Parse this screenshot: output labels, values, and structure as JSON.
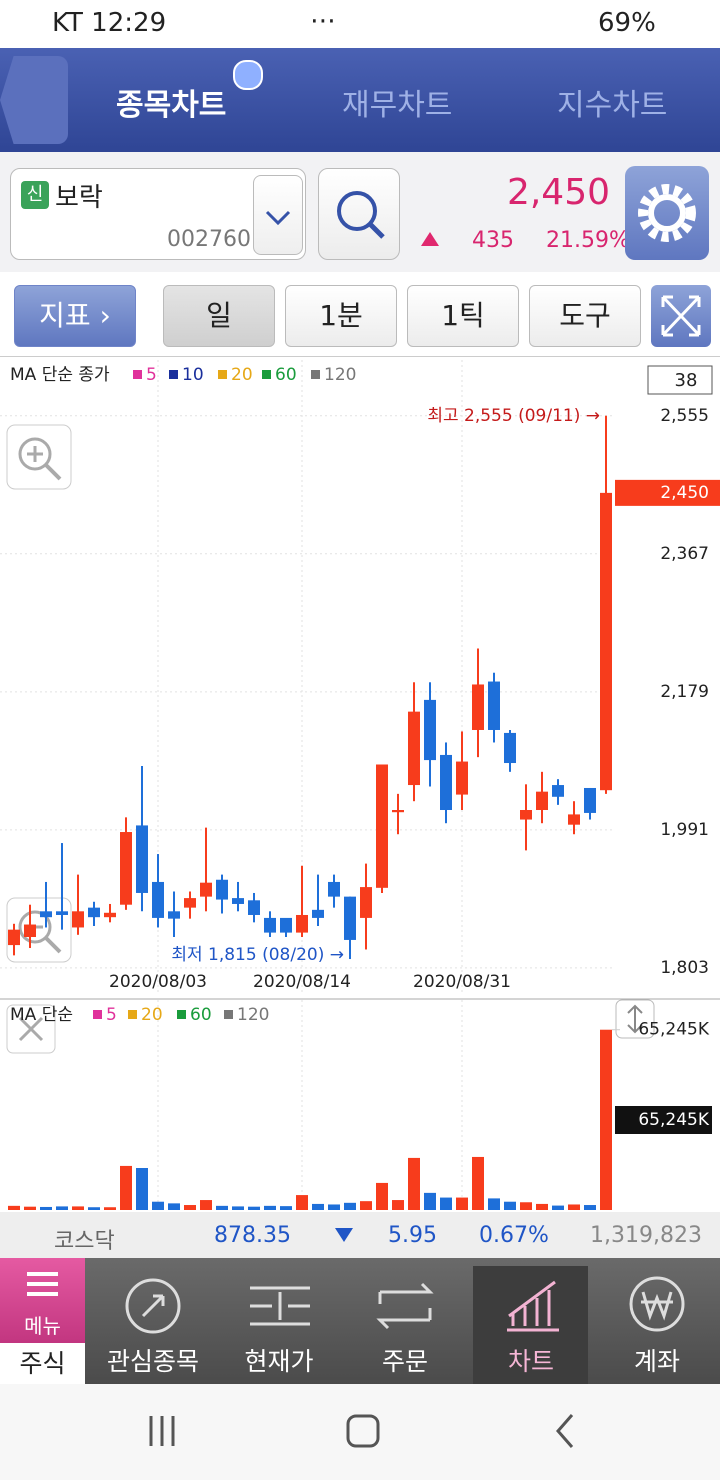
{
  "status_bar": {
    "carrier_time": "KT 12:29",
    "battery": "69%"
  },
  "tabs": [
    "종목차트",
    "재무차트",
    "지수차트"
  ],
  "stock": {
    "badge": "신",
    "name": "보락",
    "code": "002760",
    "price": "2,450",
    "change": "435",
    "change_rate": "21.59%"
  },
  "toolbar": [
    "지표",
    "일",
    "1분",
    "1틱",
    "도구"
  ],
  "chart_data": [
    {
      "type": "candlestick",
      "legend_title": "MA 단순 종가",
      "moving_averages": [
        {
          "period": 5,
          "color": "#e0319b"
        },
        {
          "period": 10,
          "color": "#1a2f9c"
        },
        {
          "period": 20,
          "color": "#e6a817"
        },
        {
          "period": 60,
          "color": "#1a9c3c"
        },
        {
          "period": 120,
          "color": "#777777"
        }
      ],
      "visible_count": 38,
      "categories": [
        null,
        null,
        null,
        null,
        null,
        null,
        null,
        null,
        null,
        "2020/08/03",
        null,
        null,
        null,
        null,
        null,
        null,
        null,
        null,
        "2020/08/14",
        null,
        null,
        null,
        null,
        null,
        null,
        null,
        null,
        null,
        "2020/08/31",
        null,
        null,
        null,
        null,
        null,
        null,
        null,
        null,
        null
      ],
      "open": [
        1834,
        1845,
        1880,
        1880,
        1858,
        1885,
        1872,
        1889,
        1997,
        1920,
        1880,
        1885,
        1900,
        1923,
        1898,
        1895,
        1871,
        1871,
        1851,
        1882,
        1920,
        1900,
        1871,
        1912,
        2015,
        2052,
        2168,
        2093,
        2039,
        2127,
        2193,
        2123,
        2005,
        2018,
        2052,
        1998,
        2048,
        2045
      ],
      "high": [
        1863,
        1889,
        1920,
        1973,
        1930,
        1893,
        1890,
        2008,
        2078,
        1958,
        1907,
        1907,
        1994,
        1930,
        1920,
        1905,
        1880,
        1870,
        1942,
        1930,
        1930,
        1900,
        1945,
        2080,
        2040,
        2192,
        2192,
        2110,
        2125,
        2238,
        2205,
        2127,
        2053,
        2070,
        2060,
        2030,
        2048,
        2555
      ],
      "low": [
        1820,
        1830,
        1858,
        1855,
        1848,
        1860,
        1865,
        1882,
        1880,
        1858,
        1845,
        1870,
        1880,
        1877,
        1880,
        1865,
        1845,
        1845,
        1845,
        1860,
        1885,
        1815,
        1828,
        1905,
        1985,
        2030,
        2050,
        2000,
        2018,
        2090,
        2110,
        2070,
        1963,
        2000,
        2025,
        1985,
        2005,
        2040
      ],
      "close": [
        1855,
        1862,
        1872,
        1875,
        1880,
        1872,
        1878,
        1988,
        1905,
        1871,
        1870,
        1898,
        1919,
        1896,
        1890,
        1875,
        1851,
        1851,
        1875,
        1871,
        1900,
        1841,
        1913,
        2080,
        2018,
        2152,
        2086,
        2018,
        2084,
        2189,
        2127,
        2082,
        2018,
        2043,
        2036,
        2012,
        2014,
        2450
      ],
      "up_color": "#f73c1c",
      "down_color": "#1e6fd9",
      "ylim": [
        1766,
        2631
      ],
      "yticks": [
        {
          "value": 2555,
          "label": "2,555"
        },
        {
          "value": 2367,
          "label": "2,367"
        },
        {
          "value": 2179,
          "label": "2,179"
        },
        {
          "value": 1991,
          "label": "1,991"
        },
        {
          "value": 1803,
          "label": "1,803"
        }
      ],
      "current_value": {
        "value": 2450,
        "label": "2,450"
      },
      "high_annotation": "최고 2,555 (09/11) →",
      "low_annotation": "최저 1,815 (08/20) →",
      "grid": true
    },
    {
      "type": "bar",
      "legend_title": "MA 단순",
      "moving_averages": [
        {
          "period": 5,
          "color": "#e0319b"
        },
        {
          "period": 20,
          "color": "#e6a817"
        },
        {
          "period": 60,
          "color": "#1a9c3c"
        },
        {
          "period": 120,
          "color": "#777777"
        }
      ],
      "values": [
        1500,
        1200,
        1100,
        1300,
        1300,
        1000,
        1000,
        15950,
        15200,
        3000,
        2400,
        1800,
        3600,
        1500,
        1300,
        1200,
        1500,
        1400,
        5400,
        2200,
        2000,
        2600,
        3200,
        9800,
        3600,
        18850,
        6200,
        4500,
        4500,
        19200,
        4200,
        3000,
        2800,
        2200,
        1600,
        2000,
        1800,
        65245
      ],
      "ylim": [
        0,
        76000
      ],
      "yticks": [
        {
          "value": 65245,
          "label": "65,245K"
        }
      ],
      "current_label": "65,245K"
    }
  ],
  "index_bar": {
    "name": "코스닥",
    "value": "878.35",
    "change": "5.95",
    "rate": "0.67%",
    "volume": "1,319,823"
  },
  "bottom_nav": {
    "menu": "메뉴",
    "items": [
      "주식",
      "관심종목",
      "현재가",
      "주문",
      "차트",
      "계좌"
    ]
  }
}
